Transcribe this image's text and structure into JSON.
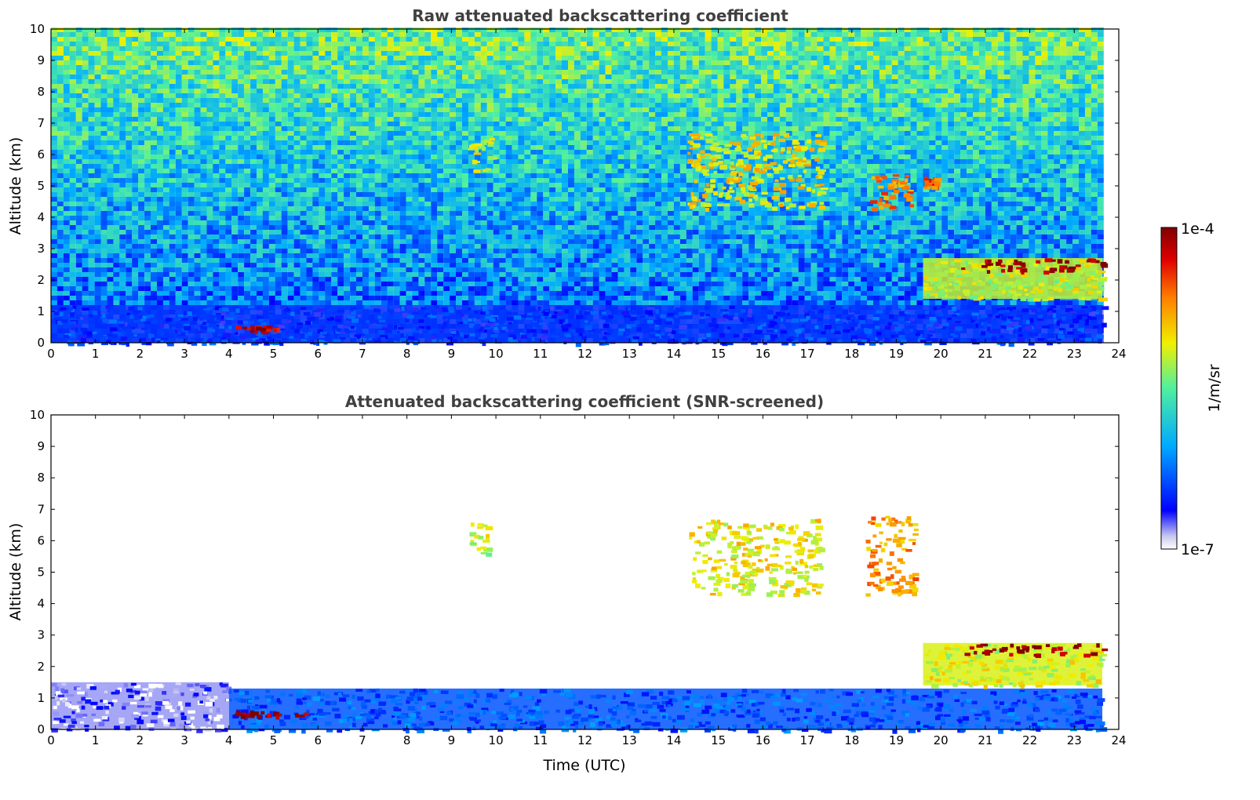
{
  "chart_data": [
    {
      "type": "heatmap",
      "title": "Raw attenuated backscattering coefficient",
      "xlabel": "",
      "ylabel": "Altitude (km)",
      "xlim": [
        0,
        24
      ],
      "ylim": [
        0,
        10
      ],
      "xticks": [
        "0",
        "1",
        "2",
        "3",
        "4",
        "5",
        "6",
        "7",
        "8",
        "9",
        "10",
        "11",
        "12",
        "13",
        "14",
        "15",
        "16",
        "17",
        "18",
        "19",
        "20",
        "21",
        "22",
        "23",
        "24"
      ],
      "yticks": [
        "0",
        "1",
        "2",
        "3",
        "4",
        "5",
        "6",
        "7",
        "8",
        "9",
        "10"
      ],
      "data_end_hour": 23.63,
      "features": [
        {
          "kind": "noisy background",
          "level": 0.5
        },
        {
          "kind": "cloud",
          "t": [
            9.3,
            9.9
          ],
          "z": [
            5.5,
            6.6
          ],
          "level": 0.62
        },
        {
          "kind": "cloud",
          "t": [
            14.3,
            17.3
          ],
          "z": [
            4.3,
            6.7
          ],
          "level": 0.66
        },
        {
          "kind": "cloud",
          "t": [
            18.4,
            19.3
          ],
          "z": [
            4.3,
            5.5
          ],
          "level": 0.78
        },
        {
          "kind": "cloud",
          "t": [
            19.6,
            19.9
          ],
          "z": [
            5.0,
            5.3
          ],
          "level": 0.82
        },
        {
          "kind": "boundary layer aerosol",
          "t": [
            0,
            23.63
          ],
          "z": [
            0,
            1.2
          ],
          "level": 0.18
        },
        {
          "kind": "low cloud",
          "t": [
            4.1,
            5.0
          ],
          "z": [
            0.4,
            0.55
          ],
          "level": 0.95
        },
        {
          "kind": "rising cloud deck",
          "t": [
            19.6,
            23.63
          ],
          "z": [
            1.4,
            2.7
          ],
          "level": 0.6
        },
        {
          "kind": "cloud top",
          "t": [
            20.3,
            23.63
          ],
          "z": [
            2.3,
            2.7
          ],
          "level": 0.98
        }
      ]
    },
    {
      "type": "heatmap",
      "title": "Attenuated backscattering coefficient (SNR-screened)",
      "xlabel": "Time (UTC)",
      "ylabel": "Altitude (km)",
      "xlim": [
        0,
        24
      ],
      "ylim": [
        0,
        10
      ],
      "xticks": [
        "0",
        "1",
        "2",
        "3",
        "4",
        "5",
        "6",
        "7",
        "8",
        "9",
        "10",
        "11",
        "12",
        "13",
        "14",
        "15",
        "16",
        "17",
        "18",
        "19",
        "20",
        "21",
        "22",
        "23",
        "24"
      ],
      "yticks": [
        "0",
        "1",
        "2",
        "3",
        "4",
        "5",
        "6",
        "7",
        "8",
        "9",
        "10"
      ],
      "data_end_hour": 23.63,
      "features": [
        {
          "kind": "boundary layer",
          "t": [
            0,
            4.0
          ],
          "z": [
            0,
            1.5
          ],
          "level": 0.06
        },
        {
          "kind": "boundary layer",
          "t": [
            4.0,
            23.63
          ],
          "z": [
            0,
            1.3
          ],
          "level": 0.22
        },
        {
          "kind": "low cloud",
          "t": [
            4.1,
            5.7
          ],
          "z": [
            0.45,
            0.6
          ],
          "level": 1.0
        },
        {
          "kind": "cloud",
          "t": [
            9.4,
            9.8
          ],
          "z": [
            5.5,
            6.6
          ],
          "level": 0.6
        },
        {
          "kind": "cloud",
          "t": [
            14.3,
            17.3
          ],
          "z": [
            4.3,
            6.7
          ],
          "level": 0.65
        },
        {
          "kind": "cloud",
          "t": [
            18.3,
            19.4
          ],
          "z": [
            4.3,
            6.8
          ],
          "level": 0.75
        },
        {
          "kind": "rising cloud deck",
          "t": [
            19.6,
            23.63
          ],
          "z": [
            1.4,
            2.75
          ],
          "level": 0.62
        },
        {
          "kind": "cloud top",
          "t": [
            20.5,
            23.63
          ],
          "z": [
            2.4,
            2.75
          ],
          "level": 1.0
        }
      ]
    }
  ],
  "colorbar": {
    "label": "1/m/sr",
    "min_label": "1e-7",
    "max_label": "1e-4",
    "colormap": [
      "#ffffff",
      "#c8c8f0",
      "#0000ff",
      "#00c8ff",
      "#50f0a0",
      "#f0f000",
      "#ff8000",
      "#e00000",
      "#800000"
    ]
  }
}
